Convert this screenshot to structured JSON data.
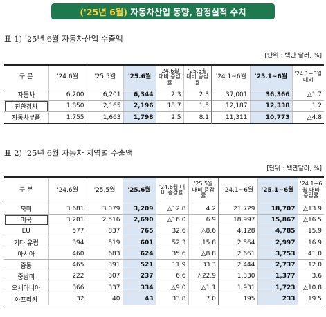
{
  "banner": {
    "highlight": "('25년 6월)",
    "title": "자동차산업 동향, 잠정실적 수치"
  },
  "table1": {
    "caption": "표 1) '25년 6월 자동차산업 수출액",
    "unit": "[단위 : 백만 달러, %]",
    "headers": {
      "category": "구 분",
      "c1": "'24.6월",
      "c2": "'25.5월",
      "c3": "'25.6월",
      "c4": "'24.6월 대비 증감률",
      "c5": "'25.5월 대비 증감률",
      "c6": "'24.1~6월",
      "c7": "'25.1~6월",
      "c8": "'24.1~6월 대비"
    },
    "rows": [
      {
        "label": "자동차",
        "v1": "6,200",
        "v2": "6,201",
        "v3": "6,344",
        "v4": "2.3",
        "v5": "2.3",
        "v6": "37,001",
        "v7": "36,366",
        "v8": "△1.7"
      },
      {
        "label": "친환경차",
        "v1": "1,850",
        "v2": "2,165",
        "v3": "2,196",
        "v4": "18.7",
        "v5": "1.5",
        "v6": "12,187",
        "v7": "12,338",
        "v8": "1.2"
      },
      {
        "label": "자동차부품",
        "v1": "1,755",
        "v2": "1,663",
        "v3": "1,798",
        "v4": "2.5",
        "v5": "8.1",
        "v6": "11,311",
        "v7": "10,773",
        "v8": "△4.8"
      }
    ]
  },
  "table2": {
    "caption": "표 2) '25년 6월 자동차 지역별 수출액",
    "unit": "[단위 : 백만달러, %]",
    "headers": {
      "category": "구 분",
      "c1": "'24.6월",
      "c2": "'25.5월",
      "c3": "'25.6월",
      "c4": "'24.6월 대비 증감률",
      "c5": "'25.5월 대비 증감률",
      "c6": "'24.1~6월",
      "c7": "'25.1~6월",
      "c8": "'24.1~6월 대비 증감률"
    },
    "rows": [
      {
        "label": "북미",
        "v1": "3,681",
        "v2": "3,079",
        "v3": "3,209",
        "v4": "△12.8",
        "v5": "4.2",
        "v6": "21,729",
        "v7": "18,707",
        "v8": "△13.9"
      },
      {
        "label": "미국",
        "v1": "3,201",
        "v2": "2,516",
        "v3": "2,690",
        "v4": "△16.0",
        "v5": "6.9",
        "v6": "18,997",
        "v7": "15,867",
        "v8": "△16.5"
      },
      {
        "label": "EU",
        "v1": "577",
        "v2": "837",
        "v3": "765",
        "v4": "32.6",
        "v5": "△8.6",
        "v6": "4,128",
        "v7": "4,785",
        "v8": "15.9"
      },
      {
        "label": "기타 유럽",
        "v1": "394",
        "v2": "519",
        "v3": "601",
        "v4": "52.3",
        "v5": "15.8",
        "v6": "2,564",
        "v7": "2,997",
        "v8": "16.9"
      },
      {
        "label": "아시아",
        "v1": "460",
        "v2": "683",
        "v3": "624",
        "v4": "35.6",
        "v5": "△8.8",
        "v6": "2,661",
        "v7": "3,753",
        "v8": "41.0"
      },
      {
        "label": "중동",
        "v1": "465",
        "v2": "391",
        "v3": "521",
        "v4": "11.9",
        "v5": "33.3",
        "v6": "2,444",
        "v7": "2,737",
        "v8": "12.0"
      },
      {
        "label": "중남미",
        "v1": "222",
        "v2": "307",
        "v3": "237",
        "v4": "6.6",
        "v5": "△22.9",
        "v6": "1,330",
        "v7": "1,377",
        "v8": "3.6"
      },
      {
        "label": "오세아니아",
        "v1": "366",
        "v2": "337",
        "v3": "334",
        "v4": "△9.0",
        "v5": "△1.1",
        "v6": "1,931",
        "v7": "1,723",
        "v8": "△10.8"
      },
      {
        "label": "아프리카",
        "v1": "32",
        "v2": "40",
        "v3": "43",
        "v4": "33.8",
        "v5": "7.0",
        "v6": "195",
        "v7": "233",
        "v8": "19.5"
      }
    ]
  }
}
